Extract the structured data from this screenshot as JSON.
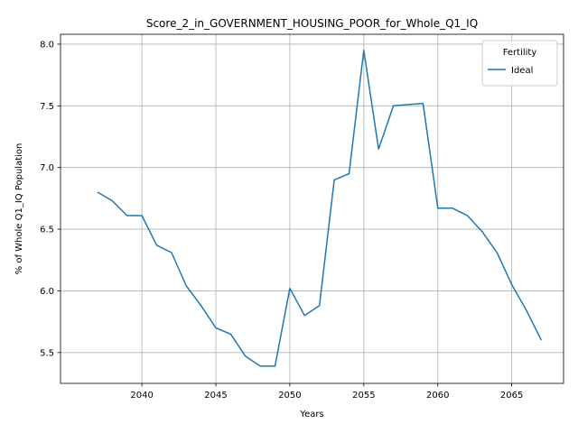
{
  "chart_data": {
    "type": "line",
    "title": "Score_2_in_GOVERNMENT_HOUSING_POOR_for_Whole_Q1_IQ",
    "xlabel": "Years",
    "ylabel": "% of Whole Q1_IQ Population",
    "xlim": [
      2034.5,
      2068.5
    ],
    "ylim": [
      5.25,
      8.08
    ],
    "x_ticks": [
      2040,
      2045,
      2050,
      2055,
      2060,
      2065
    ],
    "x_tick_labels": [
      "2040",
      "2045",
      "2050",
      "2055",
      "2060",
      "2065"
    ],
    "y_ticks": [
      5.5,
      6.0,
      6.5,
      7.0,
      7.5,
      8.0
    ],
    "y_tick_labels": [
      "5.5",
      "6.0",
      "6.5",
      "7.0",
      "7.5",
      "8.0"
    ],
    "grid": true,
    "legend": {
      "title": "Fertility",
      "placement": "top-right"
    },
    "series": [
      {
        "name": "Ideal",
        "color": "#1f77b4",
        "x": [
          2037,
          2038,
          2039,
          2040,
          2041,
          2042,
          2043,
          2044,
          2045,
          2046,
          2047,
          2048,
          2049,
          2050,
          2051,
          2052,
          2053,
          2054,
          2055,
          2056,
          2057,
          2058,
          2059,
          2060,
          2061,
          2062,
          2063,
          2064,
          2065,
          2066,
          2067
        ],
        "y": [
          6.8,
          6.73,
          6.61,
          6.61,
          6.37,
          6.31,
          6.04,
          5.88,
          5.7,
          5.65,
          5.47,
          5.39,
          5.39,
          6.02,
          5.8,
          5.88,
          6.9,
          6.95,
          7.95,
          7.15,
          7.5,
          7.51,
          7.52,
          6.67,
          6.67,
          6.61,
          6.48,
          6.31,
          6.05,
          5.84,
          5.6
        ]
      }
    ]
  }
}
